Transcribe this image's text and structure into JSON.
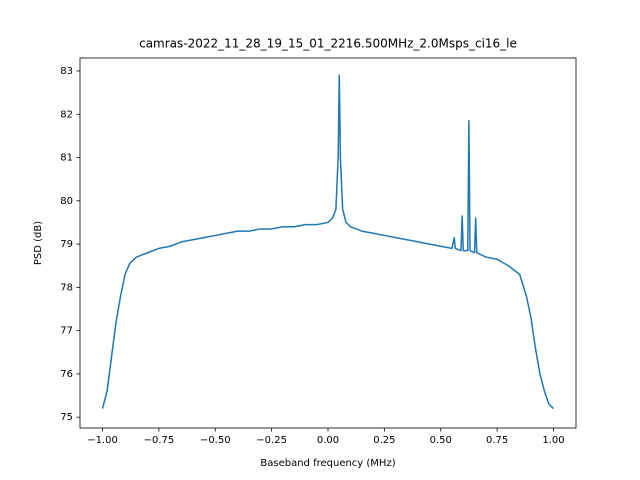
{
  "chart_data": {
    "type": "line",
    "title": "camras-2022_11_28_19_15_01_2216.500MHz_2.0Msps_ci16_le",
    "xlabel": "Baseband frequency (MHz)",
    "ylabel": "PSD (dB)",
    "xlim": [
      -1.1,
      1.1
    ],
    "ylim": [
      74.75,
      83.3
    ],
    "xticks": [
      {
        "value": -1,
        "label": "−1.00"
      },
      {
        "value": -0.75,
        "label": "−0.75"
      },
      {
        "value": -0.5,
        "label": "−0.50"
      },
      {
        "value": -0.25,
        "label": "−0.25"
      },
      {
        "value": 0,
        "label": "0.00"
      },
      {
        "value": 0.25,
        "label": "0.25"
      },
      {
        "value": 0.5,
        "label": "0.50"
      },
      {
        "value": 0.75,
        "label": "0.75"
      },
      {
        "value": 1,
        "label": "1.00"
      }
    ],
    "yticks": [
      75,
      76,
      77,
      78,
      79,
      80,
      81,
      82,
      83
    ],
    "x": [
      -1.0,
      -0.99,
      -0.98,
      -0.96,
      -0.94,
      -0.92,
      -0.9,
      -0.88,
      -0.85,
      -0.8,
      -0.75,
      -0.7,
      -0.65,
      -0.6,
      -0.55,
      -0.5,
      -0.45,
      -0.4,
      -0.35,
      -0.3,
      -0.25,
      -0.2,
      -0.15,
      -0.1,
      -0.05,
      0.0,
      0.02,
      0.035,
      0.045,
      0.05,
      0.055,
      0.065,
      0.08,
      0.1,
      0.15,
      0.2,
      0.25,
      0.3,
      0.35,
      0.4,
      0.45,
      0.5,
      0.55,
      0.56,
      0.565,
      0.59,
      0.595,
      0.6,
      0.62,
      0.625,
      0.63,
      0.65,
      0.655,
      0.66,
      0.7,
      0.75,
      0.8,
      0.85,
      0.88,
      0.9,
      0.92,
      0.94,
      0.96,
      0.98,
      1.0
    ],
    "series": [
      {
        "name": "PSD",
        "color": "#1f77b4",
        "values": [
          75.2,
          75.4,
          75.6,
          76.4,
          77.2,
          77.8,
          78.3,
          78.55,
          78.7,
          78.8,
          78.9,
          78.95,
          79.05,
          79.1,
          79.15,
          79.2,
          79.25,
          79.3,
          79.3,
          79.35,
          79.35,
          79.4,
          79.4,
          79.45,
          79.45,
          79.5,
          79.6,
          79.8,
          81.0,
          82.9,
          81.0,
          79.8,
          79.5,
          79.4,
          79.3,
          79.25,
          79.2,
          79.15,
          79.1,
          79.05,
          79.0,
          78.95,
          78.9,
          79.15,
          78.9,
          78.85,
          79.65,
          78.85,
          78.85,
          81.85,
          78.85,
          78.8,
          79.6,
          78.8,
          78.7,
          78.65,
          78.5,
          78.3,
          77.8,
          77.3,
          76.6,
          76.0,
          75.6,
          75.3,
          75.2
        ]
      }
    ]
  }
}
